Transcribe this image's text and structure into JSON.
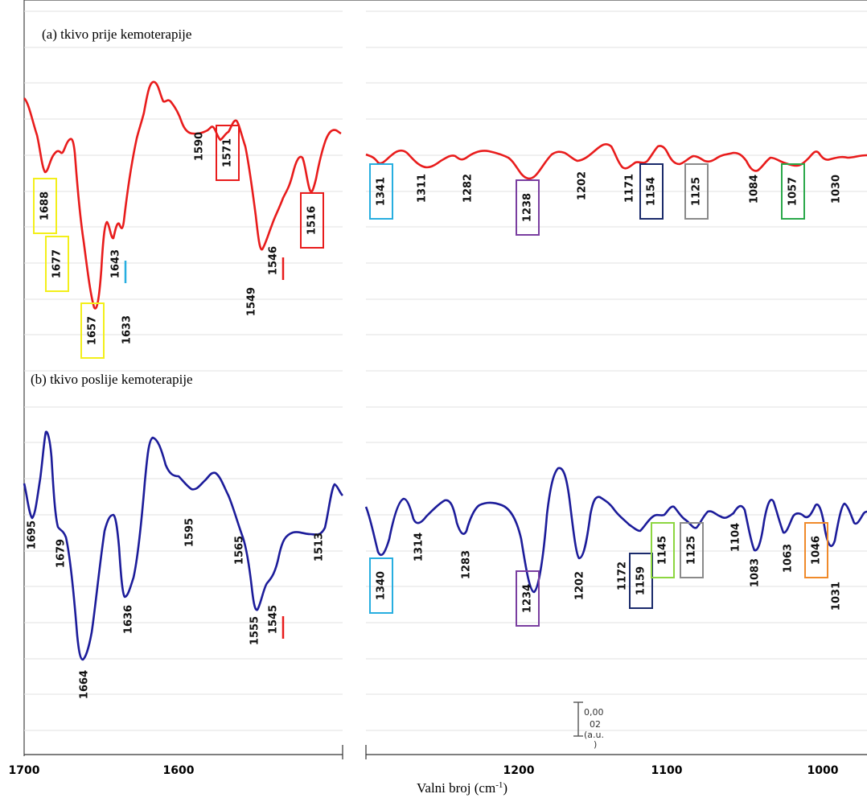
{
  "panel_a_title": "(a) tkivo prije kemoterapije",
  "panel_b_title": "(b) tkivo poslije kemoterapije",
  "x_axis_label_main": "Valni broj (cm",
  "x_axis_label_sup": "-1",
  "x_axis_label_end": ")",
  "x_ticks_left": [
    "1700",
    "1600"
  ],
  "x_ticks_right": [
    "1200",
    "1100",
    "1000"
  ],
  "scale_bar_label": [
    "0,00",
    "02",
    "(a.u.",
    ")"
  ],
  "chart_data": [
    {
      "type": "line",
      "panel": "a",
      "title": "(a) tkivo prije kemoterapije",
      "color": "#e81c1c",
      "x_axis": "wavenumber (cm-1), reversed",
      "segments": [
        {
          "xlim": [
            1700,
            1500
          ]
        },
        {
          "xlim": [
            1355,
            975
          ]
        }
      ],
      "peaks": [
        {
          "label": "1688",
          "box": "#f3ef1a"
        },
        {
          "label": "1677",
          "box": "#f3ef1a"
        },
        {
          "label": "1657",
          "box": "#f3ef1a"
        },
        {
          "label": "1643",
          "marker": "#27aee0"
        },
        {
          "label": "1633"
        },
        {
          "label": "1590"
        },
        {
          "label": "1571",
          "box": "#e81c1c"
        },
        {
          "label": "1549"
        },
        {
          "label": "1546",
          "marker": "#e81c1c"
        },
        {
          "label": "1516",
          "box": "#e81c1c"
        },
        {
          "label": "1341",
          "box": "#27aee0"
        },
        {
          "label": "1311"
        },
        {
          "label": "1282"
        },
        {
          "label": "1238",
          "box": "#7a3ea0"
        },
        {
          "label": "1202"
        },
        {
          "label": "1171"
        },
        {
          "label": "1154",
          "box": "#1a2a6b"
        },
        {
          "label": "1125",
          "box": "#8a8a8a"
        },
        {
          "label": "1084"
        },
        {
          "label": "1057",
          "box": "#2aa84a"
        },
        {
          "label": "1030"
        }
      ]
    },
    {
      "type": "line",
      "panel": "b",
      "title": "(b) tkivo poslije kemoterapije",
      "color": "#1c1c9a",
      "x_axis": "wavenumber (cm-1), reversed",
      "segments": [
        {
          "xlim": [
            1700,
            1500
          ]
        },
        {
          "xlim": [
            1355,
            975
          ]
        }
      ],
      "peaks": [
        {
          "label": "1695"
        },
        {
          "label": "1679"
        },
        {
          "label": "1664"
        },
        {
          "label": "1636"
        },
        {
          "label": "1595"
        },
        {
          "label": "1565"
        },
        {
          "label": "1555"
        },
        {
          "label": "1545",
          "marker": "#e81c1c"
        },
        {
          "label": "1513"
        },
        {
          "label": "1340",
          "box": "#27aee0"
        },
        {
          "label": "1314"
        },
        {
          "label": "1283"
        },
        {
          "label": "1234",
          "box": "#7a3ea0"
        },
        {
          "label": "1202"
        },
        {
          "label": "1172"
        },
        {
          "label": "1159",
          "box": "#1a2a6b"
        },
        {
          "label": "1145",
          "box": "#8cd640"
        },
        {
          "label": "1125",
          "box": "#8a8a8a"
        },
        {
          "label": "1104"
        },
        {
          "label": "1083"
        },
        {
          "label": "1063"
        },
        {
          "label": "1046",
          "box": "#f08a2a"
        },
        {
          "label": "1031"
        }
      ]
    }
  ]
}
